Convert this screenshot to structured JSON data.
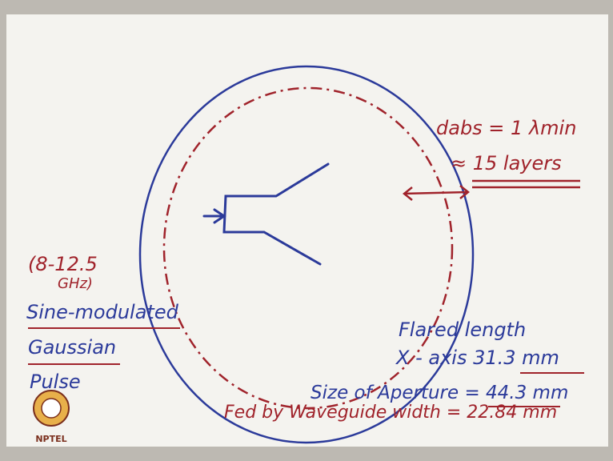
{
  "absorber": {
    "thickness": "dabs = 1 λmin",
    "layers": "≈ 15 layers"
  },
  "source": {
    "band_line1": "(8-12.5",
    "band_line2": "GHz)",
    "pulse_line1": "Sine-modulated",
    "pulse_line2": "Gaussian",
    "pulse_line3": "Pulse"
  },
  "horn": {
    "flared_line1": "Flared length",
    "flared_line2": "X - axis 31.3 mm",
    "aperture": "Size of Aperture = 44.3 mm",
    "feed": "Fed by Waveguide width = 22.84 mm"
  },
  "logo": "NPTEL"
}
